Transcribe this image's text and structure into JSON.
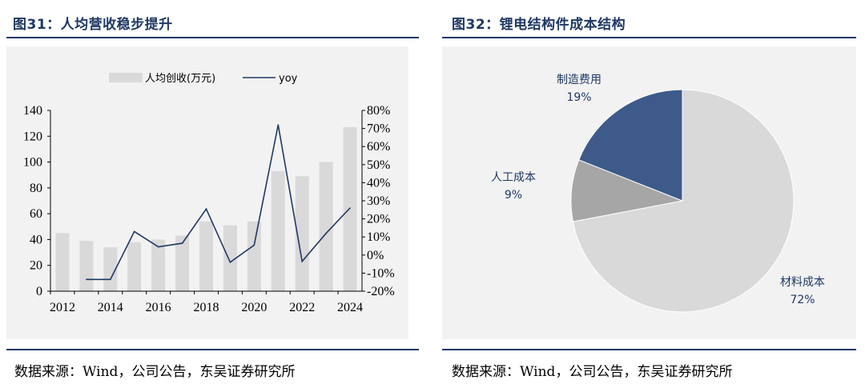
{
  "left_panel": {
    "title": "图31：人均营收稳步提升",
    "source": "数据来源：Wind，公司公告，东吴证券研究所"
  },
  "right_panel": {
    "title": "图32：锂电结构件成本结构",
    "source": "数据来源：Wind，公司公告，东吴证券研究所"
  },
  "chart_data": [
    {
      "type": "bar+line",
      "title": "",
      "categories": [
        "2012",
        "2013",
        "2014",
        "2015",
        "2016",
        "2017",
        "2018",
        "2019",
        "2020",
        "2021",
        "2022",
        "2023",
        "2024"
      ],
      "x_tick_labels": [
        "2012",
        "2014",
        "2016",
        "2018",
        "2020",
        "2022",
        "2024"
      ],
      "series": [
        {
          "name": "人均创收(万元)",
          "kind": "bar",
          "axis": "left",
          "color": "#d9d9d9",
          "values": [
            45,
            39,
            34,
            38,
            40,
            43,
            54,
            51,
            54,
            93,
            89,
            100,
            127
          ]
        },
        {
          "name": "yoy",
          "kind": "line",
          "axis": "right",
          "color": "#1f3864",
          "unit": "%",
          "values": [
            null,
            -13.5,
            -13.5,
            13,
            4.5,
            6.5,
            25.5,
            -4,
            5.5,
            72,
            -3.5,
            12,
            26
          ]
        }
      ],
      "y_left": {
        "min": 0,
        "max": 140,
        "ticks": [
          0,
          20,
          40,
          60,
          80,
          100,
          120,
          140
        ]
      },
      "y_right": {
        "min": -20,
        "max": 80,
        "ticks": [
          "-20%",
          "-10%",
          "0%",
          "10%",
          "20%",
          "30%",
          "40%",
          "50%",
          "60%",
          "70%",
          "80%"
        ]
      },
      "legend": {
        "position": "top"
      },
      "grid": false
    },
    {
      "type": "pie",
      "title": "",
      "slices": [
        {
          "label": "材料成本",
          "value": 72,
          "display": "72%",
          "color": "#d9d9d9"
        },
        {
          "label": "人工成本",
          "value": 9,
          "display": "9%",
          "color": "#a6a6a6"
        },
        {
          "label": "制造费用",
          "value": 19,
          "display": "19%",
          "color": "#3e5a8a"
        }
      ]
    }
  ]
}
